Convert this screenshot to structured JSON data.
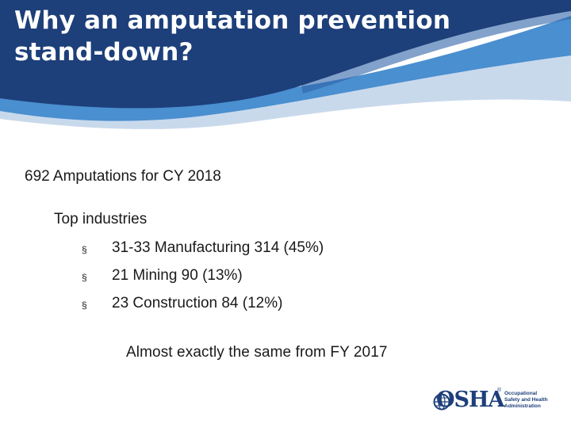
{
  "slide": {
    "title_line1": "Why an amputation prevention",
    "title_line2": "stand-down?",
    "line1": "692 Amputations for CY 2018",
    "subhead": "Top industries",
    "bullet_symbol": "§",
    "bullets": [
      "31-33 Manufacturing 314 (45%)",
      "21 Mining 90 (13%)",
      "23 Construction 84 (12%)"
    ],
    "closing": "Almost exactly the same from FY 2017"
  },
  "logo": {
    "wordmark": "OSHA",
    "registered": "®",
    "tagline": [
      "Occupational",
      "Safety and Health",
      "Administration"
    ]
  },
  "colors": {
    "header_dark": "#1d3f7a",
    "header_mid": "#4a8fcf",
    "header_light": "#c9d9ec",
    "text": "#1a1a1a"
  }
}
